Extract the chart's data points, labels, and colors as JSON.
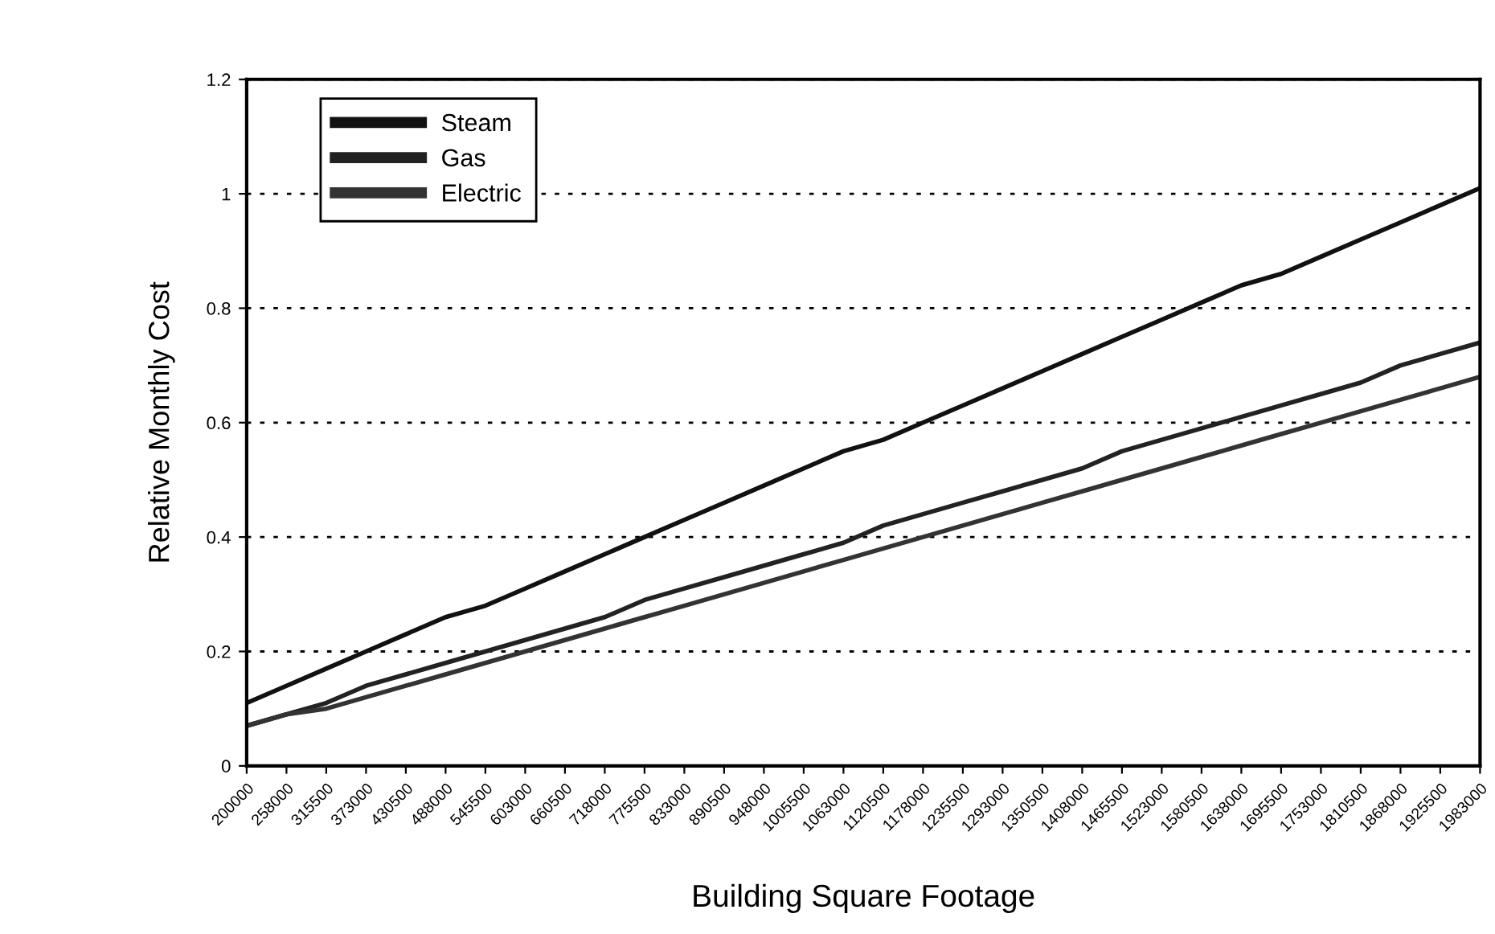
{
  "chart_data": {
    "type": "line",
    "xlabel": "Building Square Footage",
    "ylabel": "Relative Monthly Cost",
    "categories": [
      "200000",
      "258000",
      "315500",
      "373000",
      "430500",
      "488000",
      "545500",
      "603000",
      "660500",
      "718000",
      "775500",
      "833000",
      "890500",
      "948000",
      "1005500",
      "1063000",
      "1120500",
      "1178000",
      "1235500",
      "1293000",
      "1350500",
      "1408000",
      "1465500",
      "1523000",
      "1580500",
      "1638000",
      "1695500",
      "1753000",
      "1810500",
      "1868000",
      "1925500",
      "1983000"
    ],
    "series": [
      {
        "name": "Steam",
        "color": "#111111",
        "values": [
          0.11,
          0.14,
          0.17,
          0.2,
          0.23,
          0.26,
          0.28,
          0.31,
          0.34,
          0.37,
          0.4,
          0.43,
          0.46,
          0.49,
          0.52,
          0.55,
          0.57,
          0.6,
          0.63,
          0.66,
          0.69,
          0.72,
          0.75,
          0.78,
          0.81,
          0.84,
          0.86,
          0.89,
          0.92,
          0.95,
          0.98,
          1.01
        ]
      },
      {
        "name": "Gas",
        "color": "#222222",
        "values": [
          0.07,
          0.09,
          0.11,
          0.14,
          0.16,
          0.18,
          0.2,
          0.22,
          0.24,
          0.26,
          0.29,
          0.31,
          0.33,
          0.35,
          0.37,
          0.39,
          0.42,
          0.44,
          0.46,
          0.48,
          0.5,
          0.52,
          0.55,
          0.57,
          0.59,
          0.61,
          0.63,
          0.65,
          0.67,
          0.7,
          0.72,
          0.74
        ]
      },
      {
        "name": "Electric",
        "color": "#333333",
        "values": [
          0.07,
          0.09,
          0.1,
          0.12,
          0.14,
          0.16,
          0.18,
          0.2,
          0.22,
          0.24,
          0.26,
          0.28,
          0.3,
          0.32,
          0.34,
          0.36,
          0.38,
          0.4,
          0.42,
          0.44,
          0.46,
          0.48,
          0.5,
          0.52,
          0.54,
          0.56,
          0.58,
          0.6,
          0.62,
          0.64,
          0.66,
          0.68
        ]
      }
    ],
    "ylim": [
      0,
      1.2
    ],
    "yticks": [
      0,
      0.2,
      0.4,
      0.6,
      0.8,
      1,
      1.2
    ],
    "grid": "y",
    "legend": "top left",
    "marker": "none",
    "line_style": "solid"
  }
}
